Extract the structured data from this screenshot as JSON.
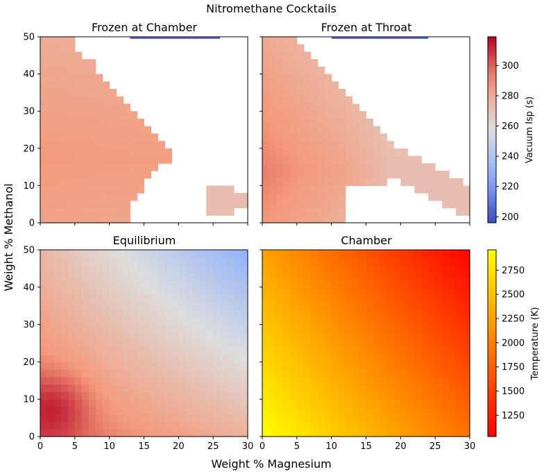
{
  "figure": {
    "suptitle": "Nitromethane Cocktails",
    "xlabel": "Weight % Magnesium",
    "ylabel": "Weight % Methanol"
  },
  "chart_data": [
    {
      "type": "heatmap",
      "title": "Frozen at Chamber",
      "quantity": "isp",
      "x_range": [
        0,
        30
      ],
      "y_range": [
        0,
        50
      ],
      "x_ticks": [
        0,
        5,
        10,
        15,
        20,
        25,
        30
      ],
      "y_ticks": [
        0,
        10,
        20,
        30,
        40,
        50
      ],
      "colormap": "coolwarm",
      "valid_boundary_upper": [
        [
          0,
          50
        ],
        [
          5,
          50
        ],
        [
          5,
          46
        ],
        [
          7,
          44
        ],
        [
          8,
          42
        ],
        [
          9,
          38
        ],
        [
          10,
          36
        ],
        [
          11,
          34
        ],
        [
          12,
          32
        ],
        [
          13,
          30
        ],
        [
          14,
          28
        ],
        [
          15,
          26
        ],
        [
          16,
          24
        ],
        [
          18,
          21
        ],
        [
          19,
          20
        ],
        [
          19,
          17
        ],
        [
          18,
          16
        ],
        [
          17,
          15
        ],
        [
          16,
          13
        ],
        [
          15,
          10
        ],
        [
          14,
          8
        ],
        [
          13,
          6
        ],
        [
          13,
          3
        ],
        [
          13,
          0
        ]
      ],
      "sample_values": [
        {
          "x": 0,
          "y": 20,
          "isp": 285
        },
        {
          "x": 10,
          "y": 20,
          "isp": 285
        },
        {
          "x": 13,
          "y": 0,
          "isp": 287
        }
      ],
      "island": {
        "x": [
          24,
          30
        ],
        "y": [
          3,
          10
        ],
        "isp": 272
      },
      "top_strip": {
        "x": [
          13,
          26
        ],
        "y": [
          49.5,
          50
        ],
        "isp": 205
      }
    },
    {
      "type": "heatmap",
      "title": "Frozen at Throat",
      "quantity": "isp",
      "x_range": [
        0,
        30
      ],
      "y_range": [
        0,
        50
      ],
      "x_ticks": [
        0,
        5,
        10,
        15,
        20,
        25,
        30
      ],
      "y_ticks": [
        0,
        10,
        20,
        30,
        40,
        50
      ],
      "colormap": "coolwarm",
      "sample_values": [
        {
          "x": 0,
          "y": 20,
          "isp": 292
        },
        {
          "x": 10,
          "y": 20,
          "isp": 288
        },
        {
          "x": 20,
          "y": 20,
          "isp": 268
        },
        {
          "x": 25,
          "y": 5,
          "isp": 272
        }
      ],
      "top_strip": {
        "x": [
          10,
          24
        ],
        "y": [
          49.5,
          50
        ],
        "isp": 205
      }
    },
    {
      "type": "heatmap",
      "title": "Equilibrium",
      "quantity": "isp",
      "x_range": [
        0,
        30
      ],
      "y_range": [
        0,
        50
      ],
      "x_ticks": [
        0,
        5,
        10,
        15,
        20,
        25,
        30
      ],
      "y_ticks": [
        0,
        10,
        20,
        30,
        40,
        50
      ],
      "colormap": "coolwarm",
      "corner_values": {
        "x0y0": 300,
        "x0y50": 275,
        "x30y0": 278,
        "x30y50": 228,
        "peak": {
          "x": 2,
          "y": 8,
          "isp": 318
        }
      }
    },
    {
      "type": "heatmap",
      "title": "Chamber",
      "quantity": "temperature",
      "x_range": [
        0,
        30
      ],
      "y_range": [
        0,
        50
      ],
      "x_ticks": [
        0,
        5,
        10,
        15,
        20,
        25,
        30
      ],
      "y_ticks": [
        0,
        10,
        20,
        30,
        40,
        50
      ],
      "colormap": "autumn",
      "corner_values": {
        "x0y0": 2950,
        "x0y50": 2250,
        "x30y0": 1900,
        "x30y50": 1050
      }
    }
  ],
  "colorbars": [
    {
      "label": "Vacuum Isp (s)",
      "colormap": "coolwarm",
      "range": [
        196,
        319
      ],
      "ticks": [
        200,
        220,
        240,
        260,
        280,
        300
      ]
    },
    {
      "label": "Temperature (K)",
      "colormap": "autumn",
      "range": [
        1030,
        2960
      ],
      "ticks": [
        1250,
        1500,
        1750,
        2000,
        2250,
        2500,
        2750
      ]
    }
  ]
}
